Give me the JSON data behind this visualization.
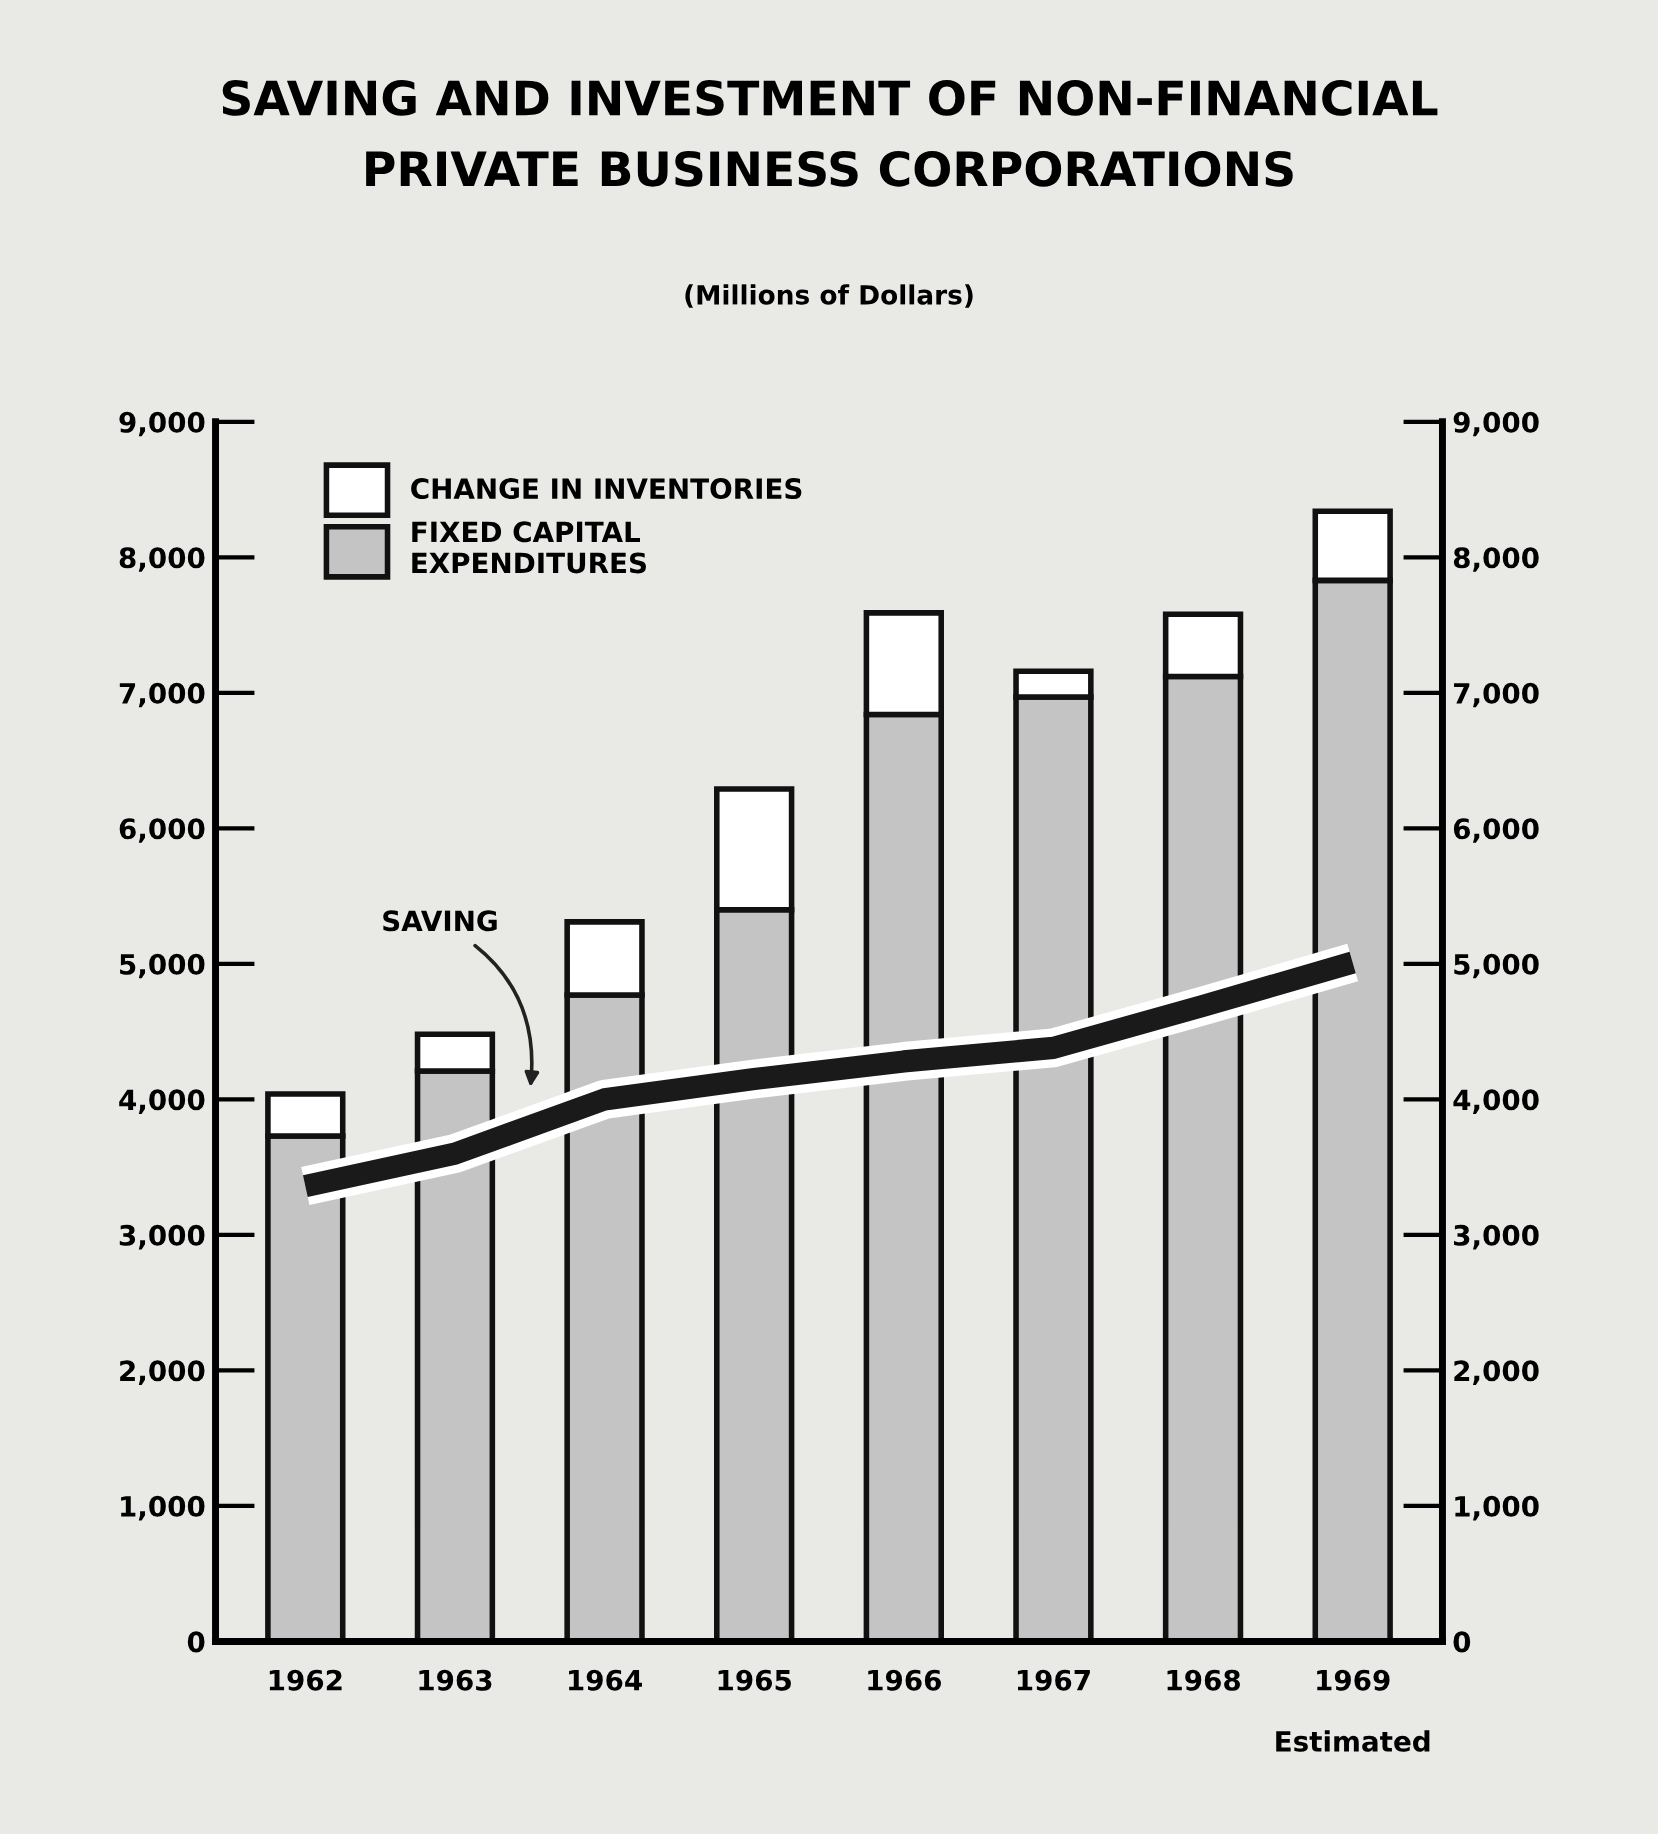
{
  "chart_data": {
    "type": "bar",
    "title": "SAVING AND INVESTMENT OF NON-FINANCIAL\nPRIVATE BUSINESS CORPORATIONS",
    "subtitle": "(Millions of Dollars)",
    "categories": [
      "1962",
      "1963",
      "1964",
      "1965",
      "1966",
      "1967",
      "1968",
      "1969"
    ],
    "stacked": true,
    "series": [
      {
        "name": "FIXED CAPITAL\nEXPENDITURES",
        "color": "#c4c4c4",
        "values": [
          3730,
          4210,
          4770,
          5400,
          6840,
          6970,
          7120,
          7830
        ]
      },
      {
        "name": "CHANGE IN INVENTORIES",
        "color": "#ffffff",
        "values": [
          310,
          270,
          540,
          890,
          750,
          190,
          460,
          510
        ]
      },
      {
        "name": "SAVING",
        "type": "line",
        "color": "#1a1a1a",
        "values": [
          3360,
          3600,
          4000,
          4150,
          4280,
          4380,
          4690,
          5010
        ]
      }
    ],
    "ylim": [
      0,
      9000
    ],
    "yticks": [
      0,
      {
        "value": 1000,
        "label": "1,000"
      },
      {
        "value": 2000,
        "label": "2,000"
      },
      {
        "value": 3000,
        "label": "3,000"
      },
      {
        "value": 4000,
        "label": "4,000"
      },
      {
        "value": 5000,
        "label": "5,000"
      },
      {
        "value": 6000,
        "label": "6,000"
      },
      {
        "value": 7000,
        "label": "7,000"
      },
      {
        "value": 8000,
        "label": "8,000"
      },
      {
        "value": 9000,
        "label": "9,000"
      }
    ],
    "y2lim": [
      0,
      9000
    ],
    "y2ticks": [
      0,
      {
        "value": 1000,
        "label": "1,000"
      },
      {
        "value": 2000,
        "label": "2,000"
      },
      {
        "value": 3000,
        "label": "3,000"
      },
      {
        "value": 4000,
        "label": "4,000"
      },
      {
        "value": 5000,
        "label": "5,000"
      },
      {
        "value": 6000,
        "label": "6,000"
      },
      {
        "value": 7000,
        "label": "7,000"
      },
      {
        "value": 8000,
        "label": "8,000"
      },
      {
        "value": 9000,
        "label": "9,000"
      }
    ],
    "annotations": [
      "Estimated"
    ],
    "legend": "top left",
    "grid": false
  }
}
